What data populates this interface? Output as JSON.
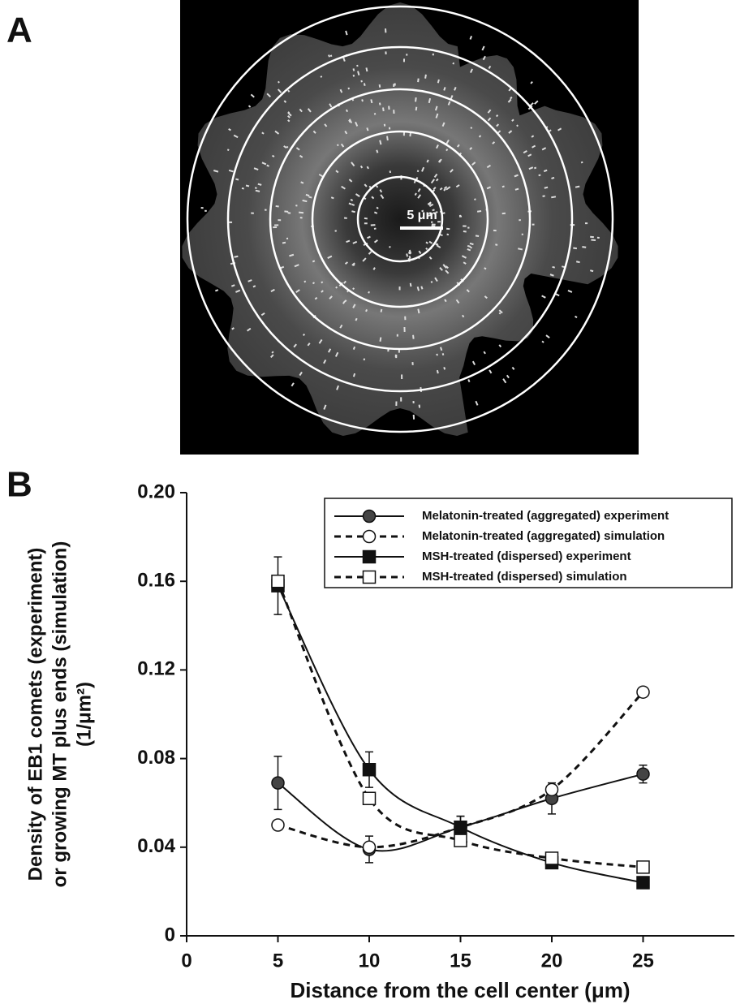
{
  "panel_a": {
    "label": "A",
    "scale_bar": "5 μm"
  },
  "chart_data": {
    "type": "line",
    "panel_label": "B",
    "xlabel": "Distance from the cell center (μm)",
    "ylabel": [
      "Density of EB1 comets (experiment)",
      "or growing MT plus ends (simulation)",
      "(1/μm²)"
    ],
    "x": [
      5,
      10,
      15,
      20,
      25
    ],
    "xlim": [
      0,
      30
    ],
    "xticks": [
      0,
      5,
      10,
      15,
      20,
      25
    ],
    "ylim": [
      0,
      0.2
    ],
    "yticks": [
      0,
      0.04,
      0.08,
      0.12,
      0.16,
      {
        "value": 0.2,
        "label": "0.20"
      }
    ],
    "legend": "top-right",
    "series": [
      {
        "name": "Melatonin-treated (aggregated) experiment",
        "color": "#444444",
        "marker": "circle",
        "filled": true,
        "dash": false,
        "values": [
          0.069,
          0.039,
          0.049,
          0.062,
          0.073
        ],
        "errors": [
          0.012,
          0.006,
          0.005,
          0.007,
          0.004
        ]
      },
      {
        "name": "Melatonin-treated (aggregated) simulation",
        "color": "#ffffff",
        "marker": "circle",
        "filled": false,
        "dash": true,
        "values": [
          0.05,
          0.04,
          0.049,
          0.066,
          0.11
        ]
      },
      {
        "name": "MSH-treated (dispersed) experiment",
        "color": "#111111",
        "marker": "square",
        "filled": true,
        "dash": false,
        "values": [
          0.158,
          0.075,
          0.049,
          0.033,
          0.024
        ],
        "errors": [
          0.013,
          0.008,
          0.005,
          0.002,
          0.002
        ]
      },
      {
        "name": "MSH-treated (dispersed) simulation",
        "color": "#ffffff",
        "marker": "square",
        "filled": false,
        "dash": true,
        "values": [
          0.16,
          0.062,
          0.043,
          0.035,
          0.031
        ]
      }
    ]
  }
}
